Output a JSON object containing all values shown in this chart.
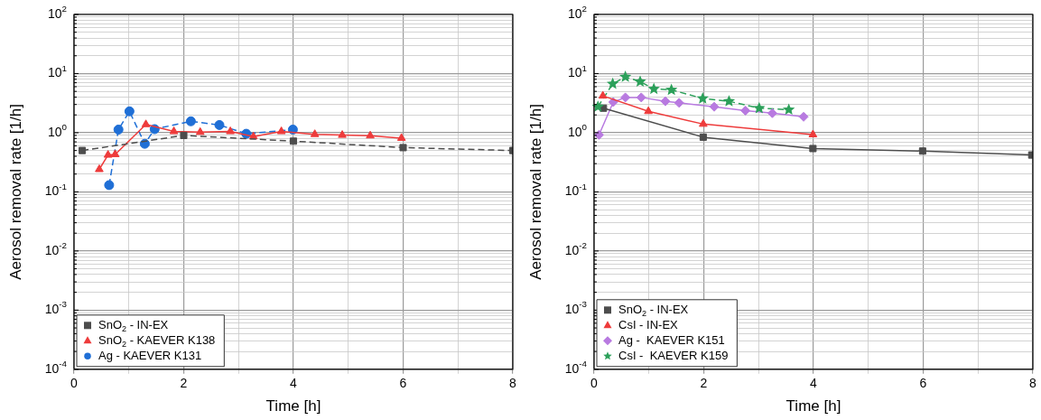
{
  "chart_data": [
    {
      "type": "line",
      "xlabel": "Time [h]",
      "ylabel": "Aerosol removal rate [1/h]",
      "log": "y",
      "grid": true,
      "legend": "bottom left",
      "xlim": [
        0,
        8
      ],
      "xticks": [
        0,
        {
          "value": 1,
          "label": null
        },
        2,
        {
          "value": 3,
          "label": null
        },
        4,
        {
          "value": 5,
          "label": null
        },
        6,
        {
          "value": 7,
          "label": null
        },
        8
      ],
      "ylim": [
        0.0001,
        100
      ],
      "yticks": [
        {
          "value": 0.0001,
          "label": "10$^{-4}$"
        },
        {
          "value": 0.0002,
          "label": null
        },
        {
          "value": 0.0003,
          "label": null
        },
        {
          "value": 0.0004,
          "label": null
        },
        {
          "value": 0.0005,
          "label": null
        },
        {
          "value": 0.0006,
          "label": null
        },
        {
          "value": 0.0007,
          "label": null
        },
        {
          "value": 0.0008,
          "label": null
        },
        {
          "value": 0.0009,
          "label": null
        },
        {
          "value": 0.001,
          "label": "10$^{-3}$"
        },
        {
          "value": 0.002,
          "label": null
        },
        {
          "value": 0.003,
          "label": null
        },
        {
          "value": 0.004,
          "label": null
        },
        {
          "value": 0.005,
          "label": null
        },
        {
          "value": 0.006,
          "label": null
        },
        {
          "value": 0.007,
          "label": null
        },
        {
          "value": 0.008,
          "label": null
        },
        {
          "value": 0.009,
          "label": null
        },
        {
          "value": 0.01,
          "label": "10$^{-2}$"
        },
        {
          "value": 0.02,
          "label": null
        },
        {
          "value": 0.03,
          "label": null
        },
        {
          "value": 0.04,
          "label": null
        },
        {
          "value": 0.05,
          "label": null
        },
        {
          "value": 0.06,
          "label": null
        },
        {
          "value": 0.07,
          "label": null
        },
        {
          "value": 0.08,
          "label": null
        },
        {
          "value": 0.09,
          "label": null
        },
        {
          "value": 0.1,
          "label": "10$^{-1}$"
        },
        {
          "value": 0.2,
          "label": null
        },
        {
          "value": 0.3,
          "label": null
        },
        {
          "value": 0.4,
          "label": null
        },
        {
          "value": 0.5,
          "label": null
        },
        {
          "value": 0.6,
          "label": null
        },
        {
          "value": 0.7,
          "label": null
        },
        {
          "value": 0.8,
          "label": null
        },
        {
          "value": 0.9,
          "label": null
        },
        {
          "value": 1,
          "label": "10$^{0}$"
        },
        {
          "value": 2,
          "label": null
        },
        {
          "value": 3,
          "label": null
        },
        {
          "value": 4,
          "label": null
        },
        {
          "value": 5,
          "label": null
        },
        {
          "value": 6,
          "label": null
        },
        {
          "value": 7,
          "label": null
        },
        {
          "value": 8,
          "label": null
        },
        {
          "value": 9,
          "label": null
        },
        {
          "value": 10,
          "label": "10$^{1}$"
        },
        {
          "value": 20,
          "label": null
        },
        {
          "value": 30,
          "label": null
        },
        {
          "value": 40,
          "label": null
        },
        {
          "value": 50,
          "label": null
        },
        {
          "value": 60,
          "label": null
        },
        {
          "value": 70,
          "label": null
        },
        {
          "value": 80,
          "label": null
        },
        {
          "value": 90,
          "label": null
        },
        {
          "value": 100,
          "label": "10$^{2}$"
        }
      ],
      "series": [
        {
          "name": "SnO$_{2}$ - IN-EX",
          "color": "#4d4d4d",
          "marker": "square",
          "line_style": "dashed",
          "x": [
            0.15,
            2.0,
            4.0,
            6.0,
            8.0
          ],
          "values": [
            0.5,
            0.9,
            0.72,
            0.56,
            0.5
          ]
        },
        {
          "name": "SnO$_{2}$ - KAEVER K138",
          "color": "#ee3b3b",
          "marker": "triangle",
          "line_style": "solid",
          "x": [
            0.46,
            0.62,
            0.75,
            1.31,
            1.82,
            2.3,
            2.85,
            3.27,
            3.78,
            4.39,
            4.89,
            5.4,
            5.97
          ],
          "values": [
            0.24,
            0.42,
            0.43,
            1.38,
            1.05,
            1.02,
            1.05,
            0.86,
            1.05,
            0.94,
            0.91,
            0.89,
            0.81
          ]
        },
        {
          "name": "Ag - KAEVER K131",
          "color": "#1f6fd6",
          "marker": "circle",
          "line_style": "dashed",
          "x": [
            0.64,
            0.81,
            1.01,
            1.29,
            1.47,
            2.13,
            2.65,
            3.14,
            3.99
          ],
          "values": [
            0.13,
            1.13,
            2.3,
            0.65,
            1.15,
            1.56,
            1.35,
            0.96,
            1.13
          ]
        }
      ]
    },
    {
      "type": "line",
      "xlabel": "Time [h]",
      "ylabel": "Aerosol removal rate [1/h]",
      "log": "y",
      "grid": true,
      "legend": "bottom left",
      "xlim": [
        0,
        8
      ],
      "xticks": [
        0,
        {
          "value": 1,
          "label": null
        },
        2,
        {
          "value": 3,
          "label": null
        },
        4,
        {
          "value": 5,
          "label": null
        },
        6,
        {
          "value": 7,
          "label": null
        },
        8
      ],
      "ylim": [
        0.0001,
        100
      ],
      "yticks": [
        {
          "value": 0.0001,
          "label": "10$^{-4}$"
        },
        {
          "value": 0.0002,
          "label": null
        },
        {
          "value": 0.0003,
          "label": null
        },
        {
          "value": 0.0004,
          "label": null
        },
        {
          "value": 0.0005,
          "label": null
        },
        {
          "value": 0.0006,
          "label": null
        },
        {
          "value": 0.0007,
          "label": null
        },
        {
          "value": 0.0008,
          "label": null
        },
        {
          "value": 0.0009,
          "label": null
        },
        {
          "value": 0.001,
          "label": "10$^{-3}$"
        },
        {
          "value": 0.002,
          "label": null
        },
        {
          "value": 0.003,
          "label": null
        },
        {
          "value": 0.004,
          "label": null
        },
        {
          "value": 0.005,
          "label": null
        },
        {
          "value": 0.006,
          "label": null
        },
        {
          "value": 0.007,
          "label": null
        },
        {
          "value": 0.008,
          "label": null
        },
        {
          "value": 0.009,
          "label": null
        },
        {
          "value": 0.01,
          "label": "10$^{-2}$"
        },
        {
          "value": 0.02,
          "label": null
        },
        {
          "value": 0.03,
          "label": null
        },
        {
          "value": 0.04,
          "label": null
        },
        {
          "value": 0.05,
          "label": null
        },
        {
          "value": 0.06,
          "label": null
        },
        {
          "value": 0.07,
          "label": null
        },
        {
          "value": 0.08,
          "label": null
        },
        {
          "value": 0.09,
          "label": null
        },
        {
          "value": 0.1,
          "label": "10$^{-1}$"
        },
        {
          "value": 0.2,
          "label": null
        },
        {
          "value": 0.3,
          "label": null
        },
        {
          "value": 0.4,
          "label": null
        },
        {
          "value": 0.5,
          "label": null
        },
        {
          "value": 0.6,
          "label": null
        },
        {
          "value": 0.7,
          "label": null
        },
        {
          "value": 0.8,
          "label": null
        },
        {
          "value": 0.9,
          "label": null
        },
        {
          "value": 1,
          "label": "10$^{0}$"
        },
        {
          "value": 2,
          "label": null
        },
        {
          "value": 3,
          "label": null
        },
        {
          "value": 4,
          "label": null
        },
        {
          "value": 5,
          "label": null
        },
        {
          "value": 6,
          "label": null
        },
        {
          "value": 7,
          "label": null
        },
        {
          "value": 8,
          "label": null
        },
        {
          "value": 9,
          "label": null
        },
        {
          "value": 10,
          "label": "10$^{1}$"
        },
        {
          "value": 20,
          "label": null
        },
        {
          "value": 30,
          "label": null
        },
        {
          "value": 40,
          "label": null
        },
        {
          "value": 50,
          "label": null
        },
        {
          "value": 60,
          "label": null
        },
        {
          "value": 70,
          "label": null
        },
        {
          "value": 80,
          "label": null
        },
        {
          "value": 90,
          "label": null
        },
        {
          "value": 100,
          "label": "10$^{2}$"
        }
      ],
      "series": [
        {
          "name": "SnO$_{2}$ - IN-EX",
          "color": "#4d4d4d",
          "marker": "square",
          "line_style": "solid",
          "x": [
            0.17,
            1.99,
            3.99,
            5.99,
            7.98
          ],
          "values": [
            2.6,
            0.84,
            0.54,
            0.49,
            0.42
          ]
        },
        {
          "name": "CsI - IN-EX",
          "color": "#ee3b3b",
          "marker": "triangle",
          "line_style": "solid",
          "x": [
            0.16,
            0.99,
            1.99,
            3.99
          ],
          "values": [
            4.2,
            2.3,
            1.4,
            0.93
          ]
        },
        {
          "name": "Ag -  KAEVER K151",
          "color": "#b87ae0",
          "marker": "diamond",
          "line_style": "solid",
          "x": [
            0.09,
            0.35,
            0.57,
            0.86,
            1.3,
            1.55,
            2.19,
            2.76,
            3.25,
            3.82
          ],
          "values": [
            0.92,
            3.3,
            3.95,
            3.95,
            3.4,
            3.2,
            2.75,
            2.36,
            2.14,
            1.86
          ]
        },
        {
          "name": "CsI -  KAEVER K159",
          "color": "#2ca05a",
          "marker": "star",
          "line_style": "dashed",
          "x": [
            0.07,
            0.34,
            0.57,
            0.84,
            1.09,
            1.41,
            1.98,
            2.46,
            3.01,
            3.55
          ],
          "values": [
            2.75,
            6.7,
            8.8,
            7.3,
            5.5,
            5.3,
            3.8,
            3.4,
            2.6,
            2.45
          ]
        }
      ]
    }
  ]
}
